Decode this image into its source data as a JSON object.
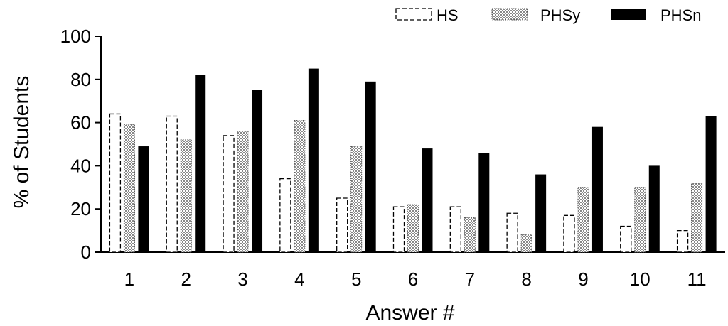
{
  "chart_data": {
    "type": "bar",
    "xlabel": "Answer #",
    "ylabel": "% of Students",
    "ylim": [
      0,
      100
    ],
    "yticks": [
      0,
      20,
      40,
      60,
      80,
      100
    ],
    "categories": [
      "1",
      "2",
      "3",
      "4",
      "5",
      "6",
      "7",
      "8",
      "9",
      "10",
      "11"
    ],
    "series": [
      {
        "name": "HS",
        "style": "dashed-outline",
        "color": "#000000",
        "values": [
          64,
          63,
          54,
          34,
          25,
          21,
          21,
          18,
          17,
          12,
          10
        ]
      },
      {
        "name": "PHSy",
        "style": "dotted-pattern",
        "color": "#555555",
        "values": [
          59,
          52,
          56,
          61,
          49,
          22,
          16,
          8,
          30,
          30,
          32
        ]
      },
      {
        "name": "PHSn",
        "style": "solid",
        "color": "#000000",
        "values": [
          49,
          82,
          75,
          85,
          79,
          48,
          46,
          36,
          58,
          40,
          63
        ]
      }
    ],
    "grid": false,
    "legend_position": "top-right"
  }
}
